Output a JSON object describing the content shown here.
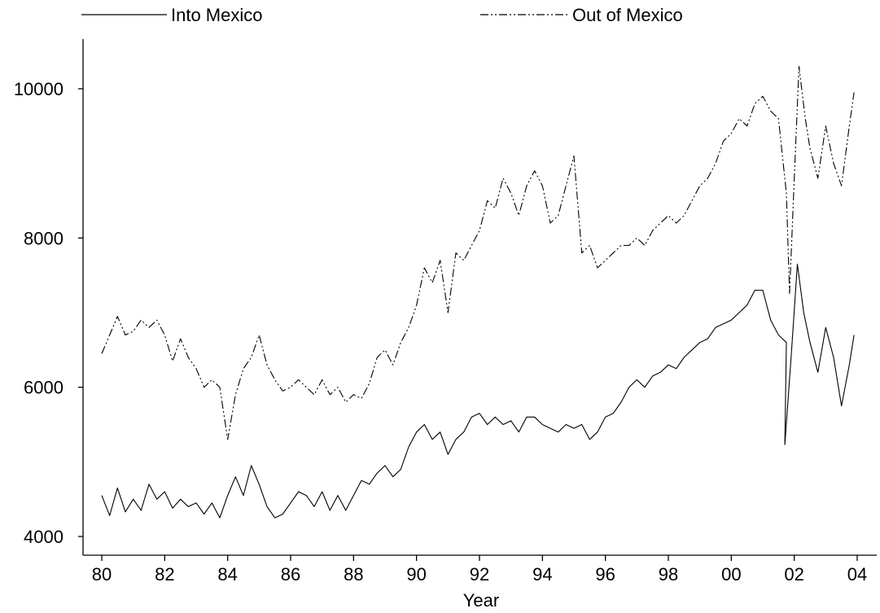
{
  "chart_data": {
    "type": "line",
    "title": "",
    "xlabel": "Year",
    "ylabel": "",
    "xlim": [
      1980,
      2004.3
    ],
    "ylim": [
      3850,
      10650
    ],
    "x_ticks": [
      {
        "value": 1980,
        "label": "80"
      },
      {
        "value": 1982,
        "label": "82"
      },
      {
        "value": 1984,
        "label": "84"
      },
      {
        "value": 1986,
        "label": "86"
      },
      {
        "value": 1988,
        "label": "88"
      },
      {
        "value": 1990,
        "label": "90"
      },
      {
        "value": 1992,
        "label": "92"
      },
      {
        "value": 1994,
        "label": "94"
      },
      {
        "value": 1996,
        "label": "96"
      },
      {
        "value": 1998,
        "label": "98"
      },
      {
        "value": 2000,
        "label": "00"
      },
      {
        "value": 2002,
        "label": "02"
      },
      {
        "value": 2004,
        "label": "04"
      }
    ],
    "y_ticks": [
      {
        "value": 4000,
        "label": "4000"
      },
      {
        "value": 6000,
        "label": "6000"
      },
      {
        "value": 8000,
        "label": "8000"
      },
      {
        "value": 10000,
        "label": "10000"
      }
    ],
    "legend_position": "top",
    "grid": false,
    "series": [
      {
        "name": "Into Mexico",
        "style": "solid",
        "points": [
          [
            1980.0,
            4550
          ],
          [
            1980.25,
            4280
          ],
          [
            1980.5,
            4650
          ],
          [
            1980.75,
            4330
          ],
          [
            1981.0,
            4500
          ],
          [
            1981.25,
            4350
          ],
          [
            1981.5,
            4700
          ],
          [
            1981.75,
            4500
          ],
          [
            1982.0,
            4600
          ],
          [
            1982.25,
            4380
          ],
          [
            1982.5,
            4500
          ],
          [
            1982.75,
            4400
          ],
          [
            1983.0,
            4450
          ],
          [
            1983.25,
            4300
          ],
          [
            1983.5,
            4450
          ],
          [
            1983.75,
            4250
          ],
          [
            1984.0,
            4550
          ],
          [
            1984.25,
            4800
          ],
          [
            1984.5,
            4550
          ],
          [
            1984.75,
            4950
          ],
          [
            1985.0,
            4700
          ],
          [
            1985.25,
            4400
          ],
          [
            1985.5,
            4250
          ],
          [
            1985.75,
            4300
          ],
          [
            1986.0,
            4450
          ],
          [
            1986.25,
            4600
          ],
          [
            1986.5,
            4550
          ],
          [
            1986.75,
            4400
          ],
          [
            1987.0,
            4600
          ],
          [
            1987.25,
            4350
          ],
          [
            1987.5,
            4550
          ],
          [
            1987.75,
            4350
          ],
          [
            1988.0,
            4550
          ],
          [
            1988.25,
            4750
          ],
          [
            1988.5,
            4700
          ],
          [
            1988.75,
            4850
          ],
          [
            1989.0,
            4950
          ],
          [
            1989.25,
            4800
          ],
          [
            1989.5,
            4900
          ],
          [
            1989.75,
            5200
          ],
          [
            1990.0,
            5400
          ],
          [
            1990.25,
            5500
          ],
          [
            1990.5,
            5300
          ],
          [
            1990.75,
            5400
          ],
          [
            1991.0,
            5100
          ],
          [
            1991.25,
            5300
          ],
          [
            1991.5,
            5400
          ],
          [
            1991.75,
            5600
          ],
          [
            1992.0,
            5650
          ],
          [
            1992.25,
            5500
          ],
          [
            1992.5,
            5600
          ],
          [
            1992.75,
            5500
          ],
          [
            1993.0,
            5550
          ],
          [
            1993.25,
            5400
          ],
          [
            1993.5,
            5600
          ],
          [
            1993.75,
            5600
          ],
          [
            1994.0,
            5500
          ],
          [
            1994.25,
            5450
          ],
          [
            1994.5,
            5400
          ],
          [
            1994.75,
            5500
          ],
          [
            1995.0,
            5450
          ],
          [
            1995.25,
            5500
          ],
          [
            1995.5,
            5300
          ],
          [
            1995.75,
            5400
          ],
          [
            1996.0,
            5600
          ],
          [
            1996.25,
            5650
          ],
          [
            1996.5,
            5800
          ],
          [
            1996.75,
            6000
          ],
          [
            1997.0,
            6100
          ],
          [
            1997.25,
            6000
          ],
          [
            1997.5,
            6150
          ],
          [
            1997.75,
            6200
          ],
          [
            1998.0,
            6300
          ],
          [
            1998.25,
            6250
          ],
          [
            1998.5,
            6400
          ],
          [
            1998.75,
            6500
          ],
          [
            1999.0,
            6600
          ],
          [
            1999.25,
            6650
          ],
          [
            1999.5,
            6800
          ],
          [
            1999.75,
            6850
          ],
          [
            2000.0,
            6900
          ],
          [
            2000.25,
            7000
          ],
          [
            2000.5,
            7100
          ],
          [
            2000.75,
            7300
          ],
          [
            2001.0,
            7300
          ],
          [
            2001.25,
            6900
          ],
          [
            2001.5,
            6700
          ],
          [
            2001.75,
            6600
          ],
          [
            2001.7,
            5230
          ],
          [
            2001.9,
            6400
          ],
          [
            2002.1,
            7650
          ],
          [
            2002.3,
            7000
          ],
          [
            2002.5,
            6600
          ],
          [
            2002.75,
            6200
          ],
          [
            2003.0,
            6800
          ],
          [
            2003.25,
            6400
          ],
          [
            2003.5,
            5750
          ],
          [
            2003.75,
            6300
          ],
          [
            2003.9,
            6700
          ]
        ]
      },
      {
        "name": "Out of Mexico",
        "style": "dash-dot-dot",
        "points": [
          [
            1980.0,
            6450
          ],
          [
            1980.25,
            6700
          ],
          [
            1980.5,
            6950
          ],
          [
            1980.75,
            6700
          ],
          [
            1981.0,
            6750
          ],
          [
            1981.25,
            6900
          ],
          [
            1981.5,
            6800
          ],
          [
            1981.75,
            6900
          ],
          [
            1982.0,
            6700
          ],
          [
            1982.25,
            6350
          ],
          [
            1982.5,
            6650
          ],
          [
            1982.75,
            6400
          ],
          [
            1983.0,
            6250
          ],
          [
            1983.25,
            6000
          ],
          [
            1983.5,
            6100
          ],
          [
            1983.75,
            6000
          ],
          [
            1984.0,
            5300
          ],
          [
            1984.25,
            5900
          ],
          [
            1984.5,
            6250
          ],
          [
            1984.75,
            6400
          ],
          [
            1985.0,
            6700
          ],
          [
            1985.25,
            6300
          ],
          [
            1985.5,
            6100
          ],
          [
            1985.75,
            5950
          ],
          [
            1986.0,
            6000
          ],
          [
            1986.25,
            6100
          ],
          [
            1986.5,
            6000
          ],
          [
            1986.75,
            5900
          ],
          [
            1987.0,
            6100
          ],
          [
            1987.25,
            5900
          ],
          [
            1987.5,
            6000
          ],
          [
            1987.75,
            5800
          ],
          [
            1988.0,
            5900
          ],
          [
            1988.25,
            5850
          ],
          [
            1988.5,
            6050
          ],
          [
            1988.75,
            6400
          ],
          [
            1989.0,
            6500
          ],
          [
            1989.25,
            6300
          ],
          [
            1989.5,
            6600
          ],
          [
            1989.75,
            6800
          ],
          [
            1990.0,
            7100
          ],
          [
            1990.25,
            7600
          ],
          [
            1990.5,
            7400
          ],
          [
            1990.75,
            7700
          ],
          [
            1991.0,
            7000
          ],
          [
            1991.25,
            7800
          ],
          [
            1991.5,
            7700
          ],
          [
            1991.75,
            7900
          ],
          [
            1992.0,
            8100
          ],
          [
            1992.25,
            8500
          ],
          [
            1992.5,
            8400
          ],
          [
            1992.75,
            8800
          ],
          [
            1993.0,
            8600
          ],
          [
            1993.25,
            8300
          ],
          [
            1993.5,
            8700
          ],
          [
            1993.75,
            8900
          ],
          [
            1994.0,
            8700
          ],
          [
            1994.25,
            8200
          ],
          [
            1994.5,
            8300
          ],
          [
            1994.75,
            8700
          ],
          [
            1995.0,
            9100
          ],
          [
            1995.25,
            7800
          ],
          [
            1995.5,
            7900
          ],
          [
            1995.75,
            7600
          ],
          [
            1996.0,
            7700
          ],
          [
            1996.25,
            7800
          ],
          [
            1996.5,
            7900
          ],
          [
            1996.75,
            7900
          ],
          [
            1997.0,
            8000
          ],
          [
            1997.25,
            7900
          ],
          [
            1997.5,
            8100
          ],
          [
            1997.75,
            8200
          ],
          [
            1998.0,
            8300
          ],
          [
            1998.25,
            8200
          ],
          [
            1998.5,
            8300
          ],
          [
            1998.75,
            8500
          ],
          [
            1999.0,
            8700
          ],
          [
            1999.25,
            8800
          ],
          [
            1999.5,
            9000
          ],
          [
            1999.75,
            9300
          ],
          [
            2000.0,
            9400
          ],
          [
            2000.25,
            9600
          ],
          [
            2000.5,
            9500
          ],
          [
            2000.75,
            9800
          ],
          [
            2001.0,
            9900
          ],
          [
            2001.25,
            9700
          ],
          [
            2001.5,
            9600
          ],
          [
            2001.75,
            8600
          ],
          [
            2001.85,
            7250
          ],
          [
            2002.0,
            8800
          ],
          [
            2002.15,
            10300
          ],
          [
            2002.35,
            9600
          ],
          [
            2002.5,
            9200
          ],
          [
            2002.75,
            8800
          ],
          [
            2003.0,
            9500
          ],
          [
            2003.25,
            9000
          ],
          [
            2003.5,
            8700
          ],
          [
            2003.75,
            9500
          ],
          [
            2003.9,
            9950
          ]
        ]
      }
    ]
  }
}
